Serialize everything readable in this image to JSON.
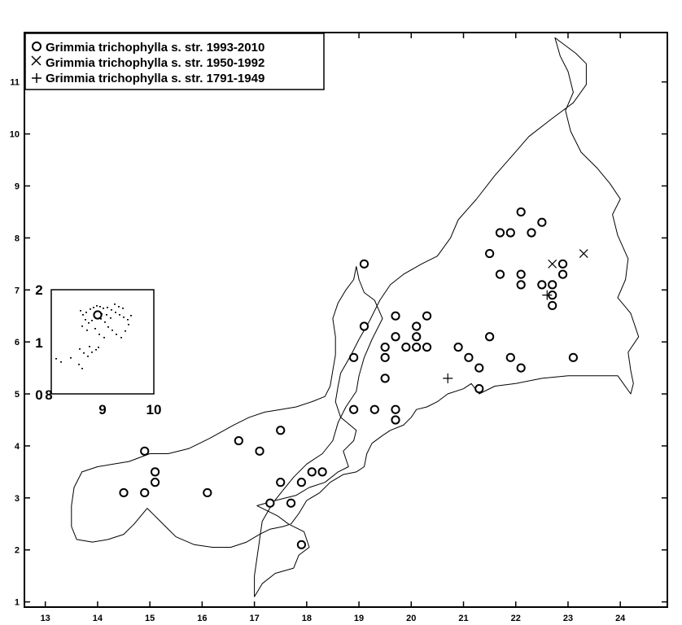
{
  "chart_data": {
    "type": "scatter",
    "title": "",
    "xlabel": "",
    "ylabel": "",
    "xlim": [
      12.6,
      24.9
    ],
    "ylim": [
      0.9,
      11.95
    ],
    "x_ticks": [
      "13",
      "14",
      "15",
      "16",
      "17",
      "18",
      "19",
      "20",
      "21",
      "22",
      "23",
      "24"
    ],
    "y_ticks": [
      "1",
      "2",
      "3",
      "4",
      "5",
      "6",
      "7",
      "8",
      "9",
      "10",
      "11"
    ],
    "legend_position": "top-left",
    "legend": [
      {
        "symbol": "circle",
        "label": "Grimmia trichophylla s. str. 1993-2010"
      },
      {
        "symbol": "x",
        "label": "Grimmia trichophylla s. str. 1950-1992"
      },
      {
        "symbol": "plus",
        "label": "Grimmia trichophylla s. str. 1791-1949"
      }
    ],
    "series": [
      {
        "name": "Grimmia trichophylla s. str. 1993-2010",
        "marker": "circle",
        "points": [
          [
            22.1,
            8.5
          ],
          [
            22.5,
            8.3
          ],
          [
            21.7,
            8.1
          ],
          [
            21.9,
            8.1
          ],
          [
            22.3,
            8.1
          ],
          [
            21.5,
            7.7
          ],
          [
            22.9,
            7.5
          ],
          [
            19.1,
            7.5
          ],
          [
            21.7,
            7.3
          ],
          [
            22.1,
            7.3
          ],
          [
            22.9,
            7.3
          ],
          [
            22.1,
            7.1
          ],
          [
            22.5,
            7.1
          ],
          [
            22.7,
            7.1
          ],
          [
            22.7,
            6.9
          ],
          [
            22.7,
            6.7
          ],
          [
            19.7,
            6.5
          ],
          [
            20.3,
            6.5
          ],
          [
            19.1,
            6.3
          ],
          [
            20.1,
            6.3
          ],
          [
            19.7,
            6.1
          ],
          [
            20.1,
            6.1
          ],
          [
            21.5,
            6.1
          ],
          [
            19.5,
            5.9
          ],
          [
            19.9,
            5.9
          ],
          [
            20.1,
            5.9
          ],
          [
            20.3,
            5.9
          ],
          [
            20.9,
            5.9
          ],
          [
            18.9,
            5.7
          ],
          [
            19.5,
            5.7
          ],
          [
            21.1,
            5.7
          ],
          [
            21.9,
            5.7
          ],
          [
            23.1,
            5.7
          ],
          [
            21.3,
            5.5
          ],
          [
            22.1,
            5.5
          ],
          [
            19.5,
            5.3
          ],
          [
            21.3,
            5.1
          ],
          [
            18.9,
            4.7
          ],
          [
            19.3,
            4.7
          ],
          [
            19.7,
            4.7
          ],
          [
            19.7,
            4.5
          ],
          [
            17.5,
            4.3
          ],
          [
            16.7,
            4.1
          ],
          [
            14.9,
            3.9
          ],
          [
            17.1,
            3.9
          ],
          [
            15.1,
            3.5
          ],
          [
            18.1,
            3.5
          ],
          [
            18.3,
            3.5
          ],
          [
            15.1,
            3.3
          ],
          [
            17.5,
            3.3
          ],
          [
            17.9,
            3.3
          ],
          [
            14.5,
            3.1
          ],
          [
            14.9,
            3.1
          ],
          [
            16.1,
            3.1
          ],
          [
            17.3,
            2.9
          ],
          [
            17.7,
            2.9
          ],
          [
            17.9,
            2.1
          ]
        ]
      },
      {
        "name": "Grimmia trichophylla s. str. 1950-1992",
        "marker": "x",
        "points": [
          [
            23.3,
            7.7
          ],
          [
            22.7,
            7.5
          ]
        ]
      },
      {
        "name": "Grimmia trichophylla s. str. 1791-1949",
        "marker": "plus",
        "points": [
          [
            22.6,
            6.9
          ],
          [
            20.7,
            5.3
          ]
        ]
      }
    ],
    "outline": [
      [
        17.0,
        1.1
      ],
      [
        17.15,
        1.35
      ],
      [
        17.4,
        1.55
      ],
      [
        17.75,
        1.65
      ],
      [
        17.85,
        1.9
      ],
      [
        18.05,
        2.05
      ],
      [
        17.95,
        2.35
      ],
      [
        17.65,
        2.5
      ],
      [
        17.45,
        2.65
      ],
      [
        17.25,
        2.75
      ],
      [
        17.05,
        2.85
      ],
      [
        17.4,
        2.95
      ],
      [
        17.8,
        3.05
      ],
      [
        18.05,
        3.2
      ],
      [
        18.35,
        3.3
      ],
      [
        18.6,
        3.5
      ],
      [
        18.8,
        3.6
      ],
      [
        18.7,
        3.9
      ],
      [
        18.9,
        4.1
      ],
      [
        18.95,
        4.3
      ],
      [
        18.65,
        4.55
      ],
      [
        18.55,
        4.85
      ],
      [
        18.6,
        5.15
      ],
      [
        18.65,
        5.4
      ],
      [
        18.85,
        5.75
      ],
      [
        19.0,
        6.05
      ],
      [
        19.2,
        6.4
      ],
      [
        19.4,
        6.8
      ],
      [
        19.6,
        7.1
      ],
      [
        19.85,
        7.3
      ],
      [
        20.2,
        7.5
      ],
      [
        20.5,
        7.65
      ],
      [
        20.75,
        8.0
      ],
      [
        20.9,
        8.35
      ],
      [
        21.25,
        8.75
      ],
      [
        21.6,
        9.2
      ],
      [
        21.95,
        9.6
      ],
      [
        22.25,
        9.95
      ],
      [
        22.7,
        10.3
      ],
      [
        23.1,
        10.6
      ],
      [
        23.35,
        10.95
      ],
      [
        23.35,
        11.35
      ],
      [
        23.15,
        11.55
      ],
      [
        22.95,
        11.7
      ],
      [
        22.75,
        11.85
      ],
      [
        22.85,
        11.5
      ],
      [
        23.0,
        11.2
      ],
      [
        23.1,
        10.8
      ],
      [
        22.95,
        10.45
      ],
      [
        23.05,
        10.05
      ],
      [
        23.25,
        9.65
      ],
      [
        23.55,
        9.35
      ],
      [
        23.8,
        9.05
      ],
      [
        24.0,
        8.75
      ],
      [
        23.85,
        8.45
      ],
      [
        23.95,
        8.05
      ],
      [
        24.15,
        7.6
      ],
      [
        24.1,
        7.2
      ],
      [
        23.95,
        6.85
      ],
      [
        24.2,
        6.55
      ],
      [
        24.35,
        6.1
      ],
      [
        24.15,
        5.8
      ],
      [
        24.2,
        5.45
      ],
      [
        24.25,
        5.2
      ],
      [
        24.2,
        5.0
      ],
      [
        23.95,
        5.35
      ],
      [
        23.5,
        5.35
      ],
      [
        23.0,
        5.35
      ],
      [
        22.5,
        5.3
      ],
      [
        22.0,
        5.2
      ],
      [
        21.6,
        5.15
      ],
      [
        21.3,
        5.0
      ],
      [
        21.15,
        5.2
      ],
      [
        21.0,
        5.1
      ],
      [
        20.7,
        5.0
      ],
      [
        20.5,
        4.85
      ],
      [
        20.3,
        4.75
      ],
      [
        20.1,
        4.7
      ],
      [
        20.0,
        4.55
      ],
      [
        19.85,
        4.4
      ],
      [
        19.6,
        4.3
      ],
      [
        19.45,
        4.2
      ],
      [
        19.25,
        4.05
      ],
      [
        19.15,
        3.85
      ],
      [
        19.1,
        3.6
      ],
      [
        18.95,
        3.5
      ],
      [
        18.7,
        3.45
      ],
      [
        18.45,
        3.3
      ],
      [
        18.25,
        3.1
      ],
      [
        18.0,
        2.95
      ],
      [
        17.85,
        2.7
      ],
      [
        17.7,
        2.5
      ],
      [
        17.55,
        2.45
      ],
      [
        17.3,
        2.4
      ],
      [
        17.1,
        2.3
      ],
      [
        16.85,
        2.15
      ],
      [
        16.55,
        2.05
      ],
      [
        16.2,
        2.05
      ],
      [
        15.85,
        2.1
      ],
      [
        15.5,
        2.25
      ],
      [
        15.3,
        2.45
      ],
      [
        15.1,
        2.65
      ],
      [
        14.95,
        2.8
      ],
      [
        14.7,
        2.5
      ],
      [
        14.5,
        2.3
      ],
      [
        14.2,
        2.2
      ],
      [
        13.9,
        2.15
      ],
      [
        13.6,
        2.2
      ],
      [
        13.5,
        2.45
      ],
      [
        13.5,
        2.85
      ],
      [
        13.55,
        3.2
      ],
      [
        13.7,
        3.5
      ],
      [
        14.0,
        3.6
      ],
      [
        14.3,
        3.65
      ],
      [
        14.6,
        3.7
      ],
      [
        15.0,
        3.85
      ],
      [
        15.35,
        3.85
      ],
      [
        15.75,
        3.95
      ],
      [
        16.15,
        4.15
      ],
      [
        16.6,
        4.4
      ],
      [
        16.9,
        4.55
      ],
      [
        17.2,
        4.65
      ],
      [
        17.5,
        4.7
      ],
      [
        17.8,
        4.75
      ],
      [
        18.1,
        4.85
      ],
      [
        18.35,
        4.95
      ],
      [
        18.45,
        5.15
      ],
      [
        18.5,
        5.45
      ],
      [
        18.55,
        5.75
      ],
      [
        18.55,
        6.1
      ],
      [
        18.5,
        6.45
      ],
      [
        18.6,
        6.75
      ],
      [
        18.75,
        7.0
      ],
      [
        18.9,
        7.2
      ],
      [
        18.95,
        7.45
      ],
      [
        19.0,
        7.2
      ],
      [
        19.1,
        6.95
      ],
      [
        19.3,
        6.8
      ],
      [
        19.45,
        6.45
      ],
      [
        19.25,
        6.05
      ],
      [
        19.1,
        5.7
      ],
      [
        19.0,
        5.35
      ],
      [
        18.95,
        5.05
      ],
      [
        18.75,
        4.75
      ],
      [
        18.6,
        4.45
      ],
      [
        18.5,
        4.1
      ],
      [
        18.3,
        3.85
      ],
      [
        18.0,
        3.65
      ],
      [
        17.75,
        3.4
      ],
      [
        17.55,
        3.15
      ],
      [
        17.35,
        2.9
      ],
      [
        17.15,
        2.55
      ],
      [
        17.1,
        2.2
      ],
      [
        17.05,
        1.85
      ],
      [
        17.0,
        1.5
      ],
      [
        17.0,
        1.1
      ]
    ],
    "inset": {
      "x_ticks": [
        "8",
        "9",
        "10"
      ],
      "y_ticks": [
        "0",
        "1",
        "2"
      ]
    }
  }
}
